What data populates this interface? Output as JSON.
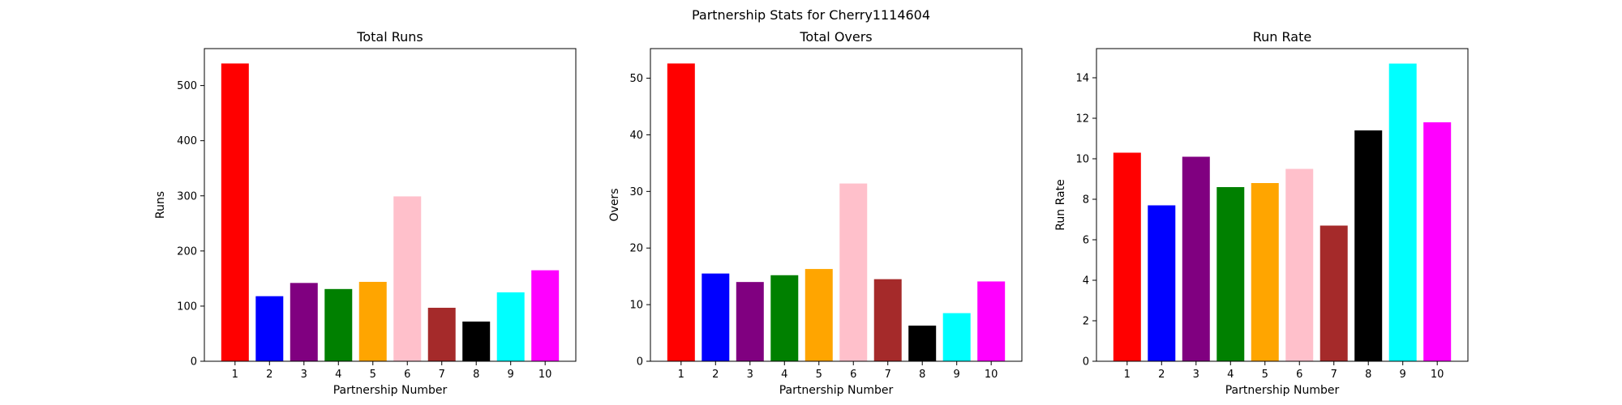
{
  "suptitle": "Partnership Stats for Cherry1114604",
  "colors": [
    "#ff0000",
    "#0000ff",
    "#800080",
    "#008000",
    "#ffa500",
    "#ffc0cb",
    "#a52a2a",
    "#000000",
    "#00ffff",
    "#ff00ff"
  ],
  "chart_data": [
    {
      "type": "bar",
      "title": "Total Runs",
      "xlabel": "Partnership Number",
      "ylabel": "Runs",
      "categories": [
        "1",
        "2",
        "3",
        "4",
        "5",
        "6",
        "7",
        "8",
        "9",
        "10"
      ],
      "values": [
        540,
        118,
        142,
        131,
        144,
        299,
        97,
        72,
        125,
        165
      ],
      "ylim": [
        0,
        567
      ],
      "yticks": [
        0,
        100,
        200,
        300,
        400,
        500
      ],
      "grid": false
    },
    {
      "type": "bar",
      "title": "Total Overs",
      "xlabel": "Partnership Number",
      "ylabel": "Overs",
      "categories": [
        "1",
        "2",
        "3",
        "4",
        "5",
        "6",
        "7",
        "8",
        "9",
        "10"
      ],
      "values": [
        52.6,
        15.5,
        14.0,
        15.2,
        16.3,
        31.4,
        14.5,
        6.3,
        8.5,
        14.1
      ],
      "ylim": [
        0,
        55.23
      ],
      "yticks": [
        0,
        10,
        20,
        30,
        40,
        50
      ],
      "grid": false
    },
    {
      "type": "bar",
      "title": "Run Rate",
      "xlabel": "Partnership Number",
      "ylabel": "Run Rate",
      "categories": [
        "1",
        "2",
        "3",
        "4",
        "5",
        "6",
        "7",
        "8",
        "9",
        "10"
      ],
      "values": [
        10.3,
        7.7,
        10.1,
        8.6,
        8.8,
        9.5,
        6.7,
        11.4,
        14.7,
        11.8
      ],
      "ylim": [
        0,
        15.44
      ],
      "yticks": [
        0,
        2,
        4,
        6,
        8,
        10,
        12,
        14
      ],
      "grid": false
    }
  ]
}
